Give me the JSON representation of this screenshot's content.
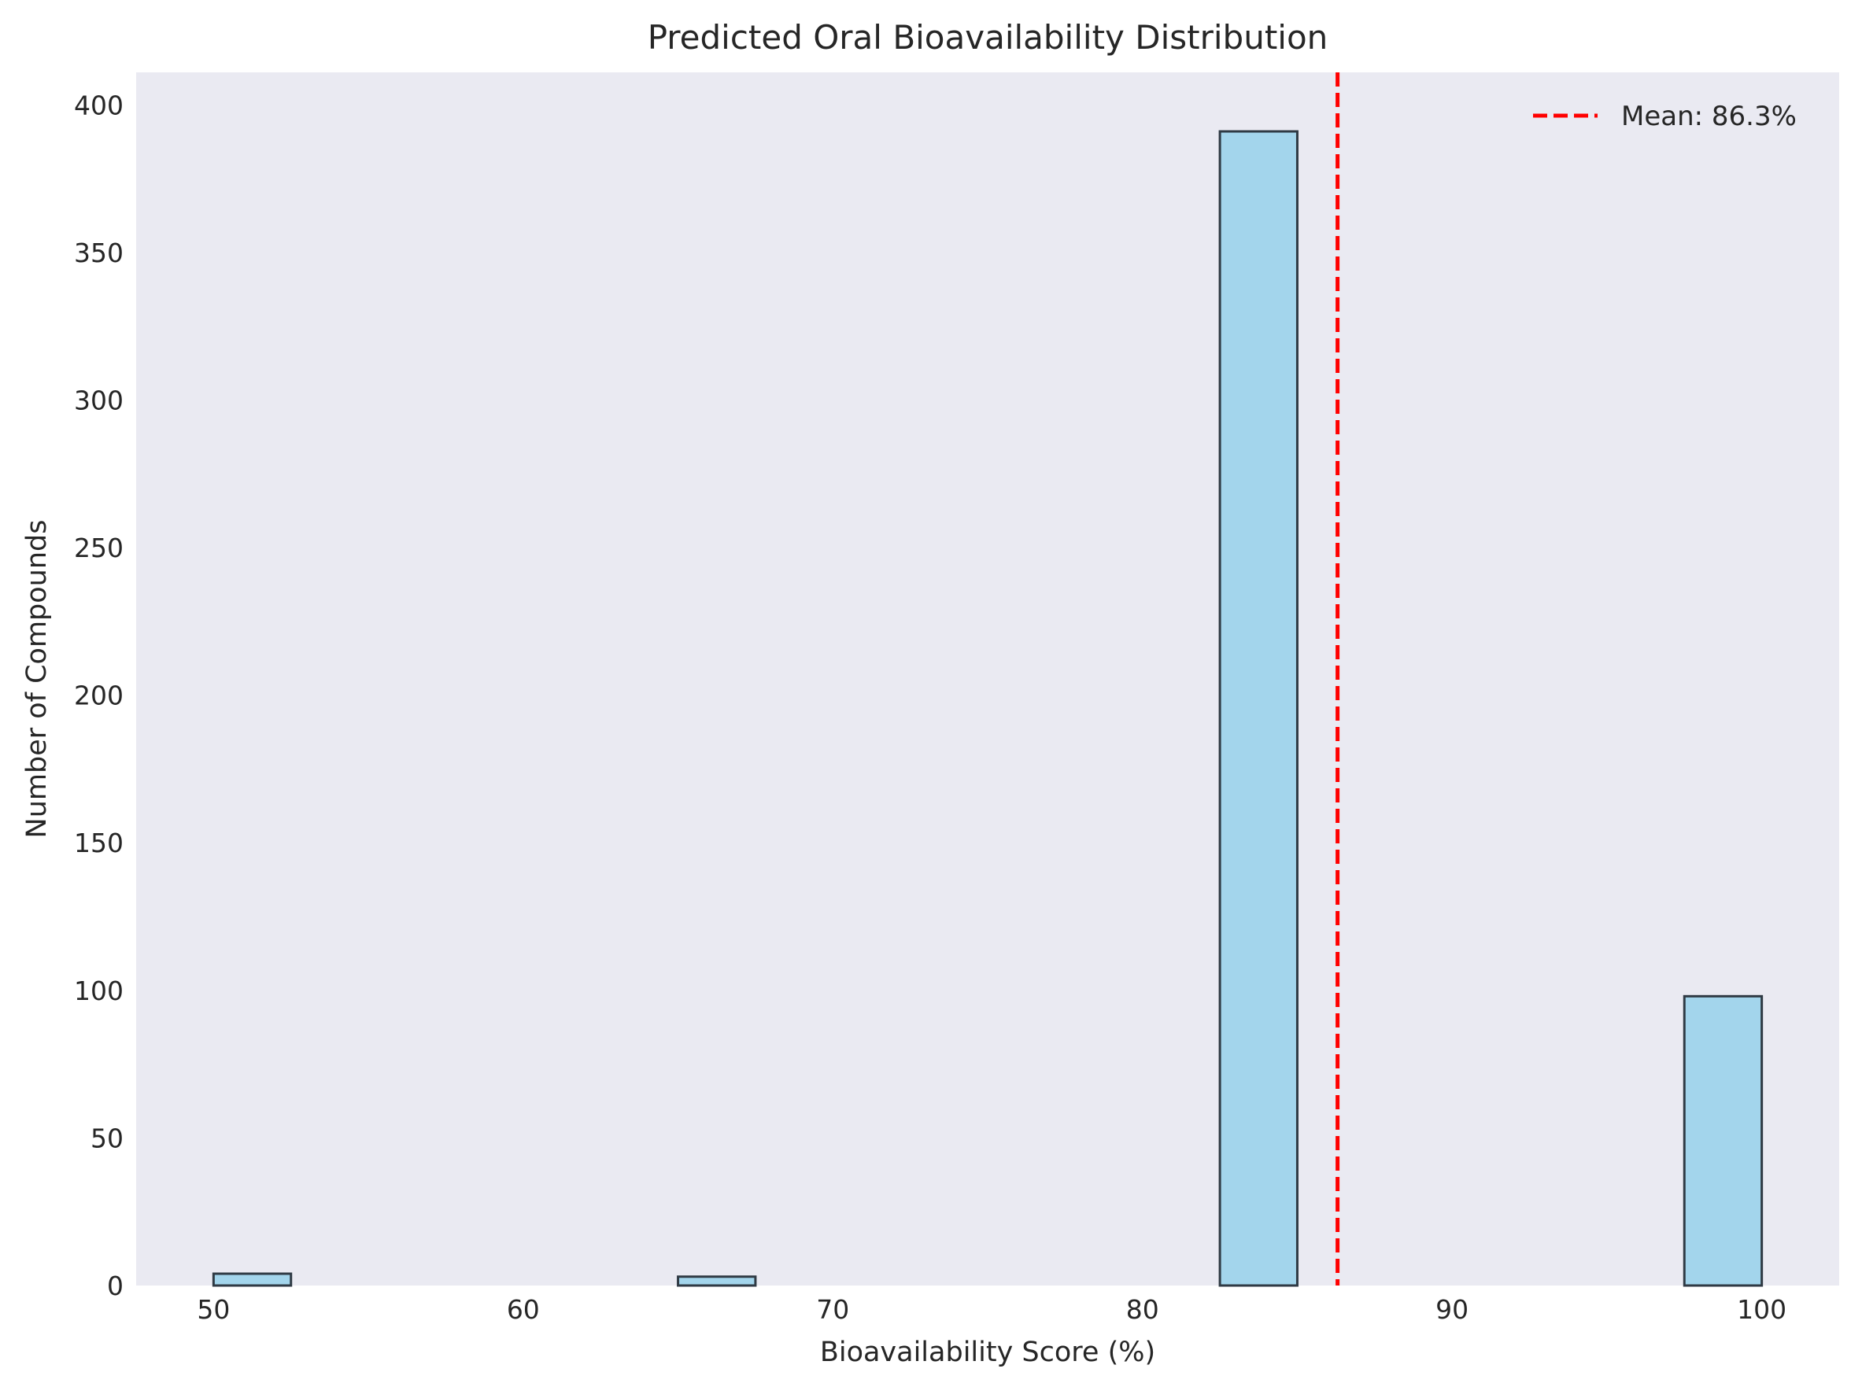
{
  "chart_data": {
    "type": "bar",
    "title": "Predicted Oral Bioavailability Distribution",
    "xlabel": "Bioavailability Score (%)",
    "ylabel": "Number of Compounds",
    "xlim": [
      47.5,
      102.5
    ],
    "ylim": [
      0,
      411
    ],
    "xticks": [
      "50",
      "60",
      "70",
      "80",
      "90",
      "100"
    ],
    "yticks": [
      "0",
      "50",
      "100",
      "150",
      "200",
      "250",
      "300",
      "350",
      "400"
    ],
    "bins": [
      {
        "x0": 50.0,
        "x1": 52.5,
        "count": 4
      },
      {
        "x0": 65.0,
        "x1": 67.5,
        "count": 3
      },
      {
        "x0": 82.5,
        "x1": 85.0,
        "count": 391
      },
      {
        "x0": 97.5,
        "x1": 100.0,
        "count": 98
      }
    ],
    "mean_line": {
      "value": 86.3,
      "label": "Mean: 86.3%",
      "color": "#ff0000"
    },
    "legend": {
      "location": "top-right"
    },
    "grid": false,
    "colors": {
      "bar_fill": "#a3d5ec",
      "bar_edge": "#2f3a44",
      "plot_bg": "#eaeaf2",
      "text": "#262626"
    }
  }
}
